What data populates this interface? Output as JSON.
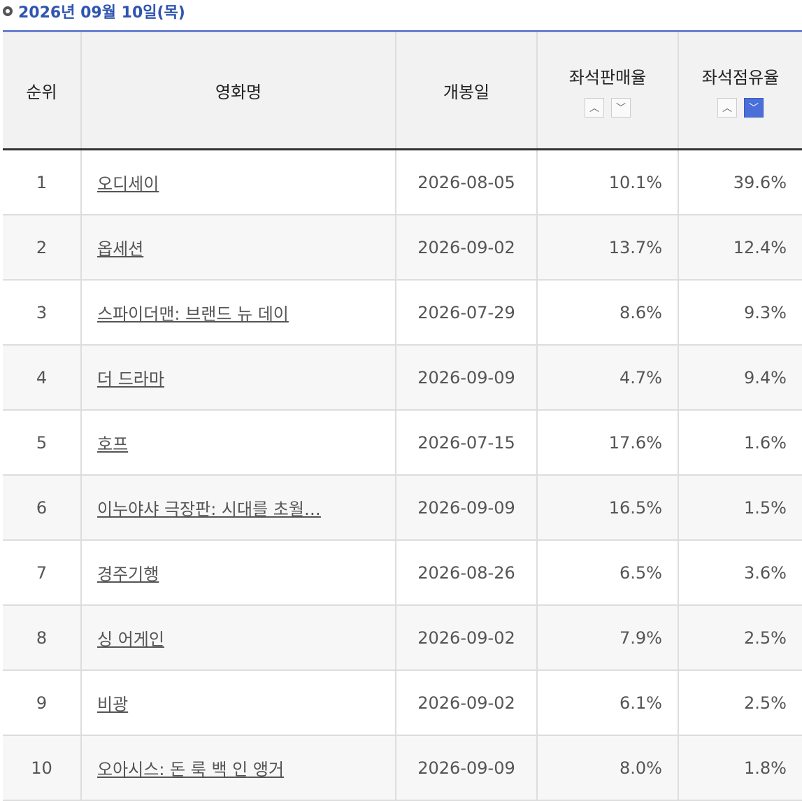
{
  "header": {
    "title": "2026년 09월 10일(목)"
  },
  "table": {
    "columns": [
      "순위",
      "영화명",
      "개봉일",
      "좌석판매율",
      "좌석점유율"
    ],
    "rows": [
      [
        "1",
        "오디세이",
        "2026-08-05",
        "10.1%",
        "39.6%"
      ],
      [
        "2",
        "옵세션",
        "2026-09-02",
        "13.7%",
        "12.4%"
      ],
      [
        "3",
        "스파이더맨: 브랜드 뉴 데이",
        "2026-07-29",
        "8.6%",
        "9.3%"
      ],
      [
        "4",
        "더 드라마",
        "2026-09-09",
        "4.7%",
        "9.4%"
      ],
      [
        "5",
        "호프",
        "2026-07-15",
        "17.6%",
        "1.6%"
      ],
      [
        "6",
        "이누야샤 극장판: 시대를 초월…",
        "2026-09-09",
        "16.5%",
        "1.5%"
      ],
      [
        "7",
        "경주기행",
        "2026-08-26",
        "6.5%",
        "3.6%"
      ],
      [
        "8",
        "싱 어게인",
        "2026-09-02",
        "7.9%",
        "2.5%"
      ],
      [
        "9",
        "비광",
        "2026-09-02",
        "6.1%",
        "2.5%"
      ],
      [
        "10",
        "오아시스: 돈 룩 백 인 앵거",
        "2026-09-09",
        "8.0%",
        "1.8%"
      ]
    ]
  }
}
